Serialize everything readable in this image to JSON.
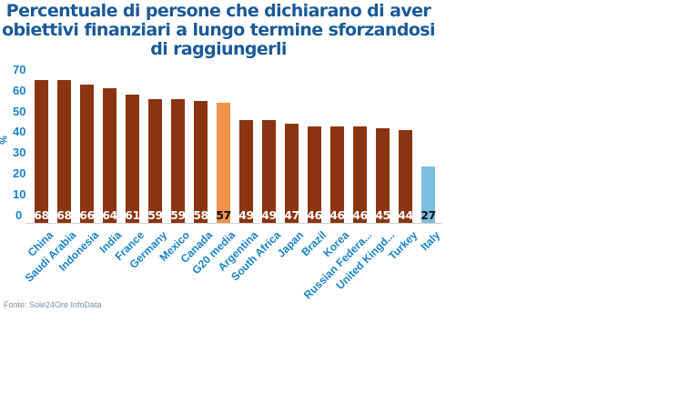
{
  "chart_data": {
    "type": "bar",
    "title": "Percentuale di persone che dichiarano di aver obiettivi finanziari a lungo termine sforzandosi di raggiungerli",
    "xlabel": "",
    "ylabel": "%",
    "ylim": [
      0,
      70
    ],
    "yticks": [
      0,
      10,
      20,
      30,
      40,
      50,
      60,
      70
    ],
    "grid": false,
    "legend": null,
    "categories": [
      "China",
      "Saudi Arabia",
      "Indonesia",
      "India",
      "France",
      "Germany",
      "Mexico",
      "Canada",
      "G20 media",
      "Argentina",
      "South Africa",
      "Japan",
      "Brazil",
      "Korea",
      "Russian Federa...",
      "United Kingd...",
      "Turkey",
      "Italy"
    ],
    "values": [
      68,
      68,
      66,
      64,
      61,
      59,
      59,
      58,
      57,
      49,
      49,
      47,
      46,
      46,
      46,
      45,
      44,
      27
    ],
    "colors": [
      "#8b3412",
      "#8b3412",
      "#8b3412",
      "#8b3412",
      "#8b3412",
      "#8b3412",
      "#8b3412",
      "#8b3412",
      "#f0924a",
      "#8b3412",
      "#8b3412",
      "#8b3412",
      "#8b3412",
      "#8b3412",
      "#8b3412",
      "#8b3412",
      "#8b3412",
      "#7bbfe2"
    ],
    "source": "Fonte: Sole24Ore InfoData"
  },
  "title": "Percentuale di persone che dichiarano di aver obiettivi finanziari a lungo termine sforzandosi di raggiungerli",
  "y_axis_label": "%",
  "source": "Fonte: Sole24Ore InfoData"
}
